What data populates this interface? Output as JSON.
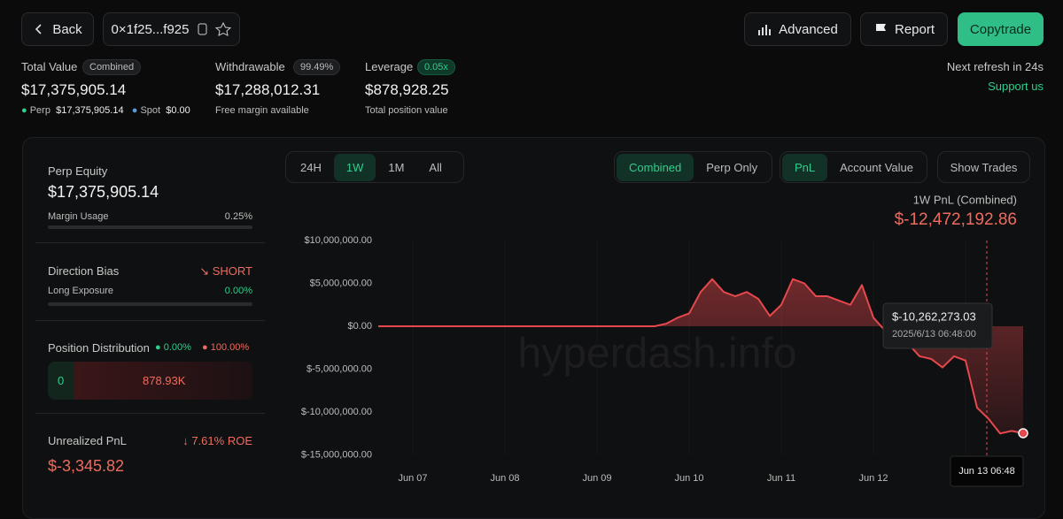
{
  "header": {
    "back": "Back",
    "address": "0×1f25...f925",
    "buttons": [
      "Advanced",
      "Report",
      "Copytrade"
    ]
  },
  "summary": {
    "total_value": {
      "label": "Total Value",
      "badge": "Combined",
      "value": "$17,375,905.14",
      "perp_label": "Perp",
      "perp_value": "$17,375,905.14",
      "spot_label": "Spot",
      "spot_value": "$0.00"
    },
    "withdrawable": {
      "label": "Withdrawable",
      "badge": "99.49%",
      "value": "$17,288,012.31",
      "note": "Free margin available"
    },
    "leverage": {
      "label": "Leverage",
      "badge": "0.05x",
      "value": "$878,928.25",
      "note": "Total position value"
    },
    "refresh": "Next refresh in 24s",
    "support": "Support us"
  },
  "account": {
    "perp_equity": {
      "label": "Perp Equity",
      "value": "$17,375,905.14",
      "margin_label": "Margin Usage",
      "margin_value": "0.25%"
    },
    "direction": {
      "label": "Direction Bias",
      "value": "SHORT",
      "exposure_label": "Long Exposure",
      "exposure_value": "0.00%"
    },
    "distribution": {
      "label": "Position Distribution",
      "long": "0.00%",
      "short": "100.00%",
      "long_amount": "0",
      "short_amount": "878.93K"
    },
    "unrealized": {
      "label": "Unrealized PnL",
      "roe": "7.61% ROE",
      "value": "$-3,345.82"
    }
  },
  "controls": {
    "ranges": [
      "24H",
      "1W",
      "1M",
      "All"
    ],
    "modes": [
      "Combined",
      "Perp Only"
    ],
    "metrics": [
      "PnL",
      "Account Value"
    ],
    "trades": "Show Trades"
  },
  "chart_data": {
    "type": "line",
    "title": "1W PnL (Combined)",
    "subtitle": "$-12,472,192.86",
    "watermark": "hyperdash.info",
    "tooltip": {
      "value": "$-10,262,273.03",
      "time": "2025/6/13 06:48:00",
      "x_label": "Jun 13 06:48"
    },
    "categories": [
      null,
      null,
      null,
      "Jun 07",
      null,
      null,
      null,
      null,
      null,
      null,
      null,
      "Jun 08",
      null,
      null,
      null,
      null,
      null,
      null,
      null,
      "Jun 09",
      null,
      null,
      null,
      null,
      null,
      null,
      null,
      "Jun 10",
      null,
      null,
      null,
      null,
      null,
      null,
      null,
      "Jun 11",
      null,
      null,
      null,
      null,
      null,
      null,
      null,
      "Jun 12",
      null,
      null,
      null,
      null,
      null,
      null,
      null,
      "Jun 13",
      null,
      null,
      null,
      null,
      null
    ],
    "series": [
      {
        "color": "#e5484d",
        "values": [
          0,
          0,
          0,
          0,
          0,
          0,
          0,
          0,
          0,
          0,
          0,
          0,
          0,
          0,
          0,
          0,
          0,
          0,
          0,
          0,
          0,
          0,
          0,
          0,
          0,
          300000,
          1000000,
          1500000,
          4000000,
          5500000,
          4000000,
          3500000,
          4000000,
          3200000,
          1200000,
          2500000,
          5500000,
          5000000,
          3500000,
          3500000,
          3000000,
          2500000,
          4800000,
          1000000,
          -500000,
          -1000000,
          -2000000,
          -3500000,
          -3800000,
          -4800000,
          -3500000,
          -4000000,
          -9500000,
          -10800000,
          -12500000,
          -12200000,
          -12472192.86
        ]
      }
    ],
    "ylim": [
      -15000000,
      10000000
    ],
    "yticks": [
      {
        "value": -15000000,
        "label": "$-15,000,000.00"
      },
      {
        "value": -10000000,
        "label": "$-10,000,000.00"
      },
      {
        "value": -5000000,
        "label": "$-5,000,000.00"
      },
      {
        "value": 0,
        "label": "$0.00"
      },
      {
        "value": 5000000,
        "label": "$5,000,000.00"
      },
      {
        "value": 10000000,
        "label": "$10,000,000.00"
      }
    ]
  }
}
